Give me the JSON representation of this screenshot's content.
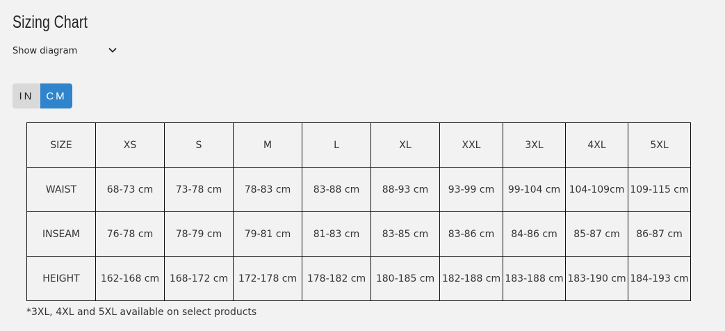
{
  "title": "Sizing Chart",
  "diagram_toggle": {
    "label": "Show diagram",
    "icon": "chevron-down-icon"
  },
  "unit_switch": {
    "options": [
      "IN",
      "CM"
    ],
    "selected": "CM",
    "active_color": "#2f84cc"
  },
  "table": {
    "header": [
      "SIZE",
      "XS",
      "S",
      "M",
      "L",
      "XL",
      "XXL",
      "3XL",
      "4XL",
      "5XL"
    ],
    "rows": [
      [
        "WAIST",
        "68-73 cm",
        "73-78 cm",
        "78-83 cm",
        "83-88 cm",
        "88-93 cm",
        "93-99 cm",
        "99-104 cm",
        "104-109cm",
        "109-115 cm"
      ],
      [
        "INSEAM",
        "76-78 cm",
        "78-79 cm",
        "79-81 cm",
        "81-83 cm",
        "83-85 cm",
        "83-86 cm",
        "84-86 cm",
        "85-87 cm",
        "86-87 cm"
      ],
      [
        "HEIGHT",
        "162-168 cm",
        "168-172 cm",
        "172-178 cm",
        "178-182 cm",
        "180-185 cm",
        "182-188 cm",
        "183-188 cm",
        "183-190 cm",
        "184-193 cm"
      ]
    ]
  },
  "footnote": "*3XL, 4XL and 5XL available on select products"
}
